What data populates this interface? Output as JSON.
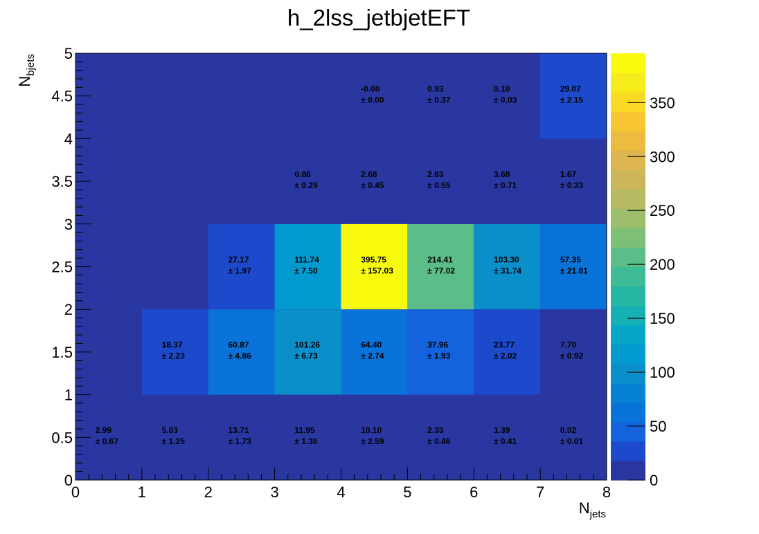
{
  "chart_data": {
    "type": "heatmap",
    "title": "h_2lss_jetbjetEFT",
    "xlabel": {
      "main": "N",
      "sub": "jets"
    },
    "ylabel": {
      "main": "N",
      "sub": "bjets"
    },
    "xlim": [
      0,
      8
    ],
    "ylim": [
      0,
      5
    ],
    "x_ticks": [
      "0",
      "1",
      "2",
      "3",
      "4",
      "5",
      "6",
      "7",
      "8"
    ],
    "y_ticks": [
      "0",
      "0.5",
      "1",
      "1.5",
      "2",
      "2.5",
      "3",
      "3.5",
      "4",
      "4.5",
      "5"
    ],
    "x_bin_edges": [
      0,
      1,
      2,
      3,
      4,
      5,
      6,
      7,
      8
    ],
    "y_bin_edges": [
      0,
      1,
      2,
      3,
      4,
      5
    ],
    "zlim": [
      0,
      395.75
    ],
    "colorbar_ticks": [
      "0",
      "50",
      "100",
      "150",
      "200",
      "250",
      "300",
      "350"
    ],
    "colorbar_tick_values": [
      0,
      50,
      100,
      150,
      200,
      250,
      300,
      350
    ],
    "palette": [
      "#2a37a1",
      "#1d49cc",
      "#1462dc",
      "#0a73d9",
      "#0781d2",
      "#0a8fca",
      "#039bcf",
      "#05a7c6",
      "#14b0b3",
      "#26b7a4",
      "#3ebc95",
      "#5bbd87",
      "#7ebf78",
      "#9cbd6b",
      "#b6ba63",
      "#cbb75a",
      "#ddb651",
      "#edbb3f",
      "#f7c532",
      "#f8d923",
      "#f6ec1b",
      "#f9fb0f"
    ],
    "cells": [
      {
        "x": 0,
        "y": 0,
        "value": 2.99,
        "label": "2.99",
        "error": "± 0.67"
      },
      {
        "x": 1,
        "y": 0,
        "value": 5.83,
        "label": "5.83",
        "error": "± 1.25"
      },
      {
        "x": 2,
        "y": 0,
        "value": 13.71,
        "label": "13.71",
        "error": "± 1.73"
      },
      {
        "x": 3,
        "y": 0,
        "value": 11.95,
        "label": "11.95",
        "error": "± 1.36"
      },
      {
        "x": 4,
        "y": 0,
        "value": 10.1,
        "label": "10.10",
        "error": "± 2.59"
      },
      {
        "x": 5,
        "y": 0,
        "value": 2.33,
        "label": "2.33",
        "error": "± 0.46"
      },
      {
        "x": 6,
        "y": 0,
        "value": 1.39,
        "label": "1.39",
        "error": "± 0.41"
      },
      {
        "x": 7,
        "y": 0,
        "value": 0.02,
        "label": "0.02",
        "error": "± 0.01"
      },
      {
        "x": 1,
        "y": 1,
        "value": 18.37,
        "label": "18.37",
        "error": "± 2.23"
      },
      {
        "x": 2,
        "y": 1,
        "value": 60.87,
        "label": "60.87",
        "error": "± 4.86"
      },
      {
        "x": 3,
        "y": 1,
        "value": 101.26,
        "label": "101.26",
        "error": "± 6.73"
      },
      {
        "x": 4,
        "y": 1,
        "value": 64.4,
        "label": "64.40",
        "error": "± 2.74"
      },
      {
        "x": 5,
        "y": 1,
        "value": 37.96,
        "label": "37.96",
        "error": "± 1.93"
      },
      {
        "x": 6,
        "y": 1,
        "value": 23.77,
        "label": "23.77",
        "error": "± 2.02"
      },
      {
        "x": 7,
        "y": 1,
        "value": 7.7,
        "label": "7.70",
        "error": "± 0.92"
      },
      {
        "x": 2,
        "y": 2,
        "value": 27.17,
        "label": "27.17",
        "error": "± 1.97"
      },
      {
        "x": 3,
        "y": 2,
        "value": 111.74,
        "label": "111.74",
        "error": "± 7.50"
      },
      {
        "x": 4,
        "y": 2,
        "value": 395.75,
        "label": "395.75",
        "error": "± 157.03"
      },
      {
        "x": 5,
        "y": 2,
        "value": 214.41,
        "label": "214.41",
        "error": "± 77.02"
      },
      {
        "x": 6,
        "y": 2,
        "value": 103.3,
        "label": "103.30",
        "error": "± 31.74"
      },
      {
        "x": 7,
        "y": 2,
        "value": 57.35,
        "label": "57.35",
        "error": "± 21.81"
      },
      {
        "x": 3,
        "y": 3,
        "value": 0.86,
        "label": "0.86",
        "error": "± 0.29"
      },
      {
        "x": 4,
        "y": 3,
        "value": 2.68,
        "label": "2.68",
        "error": "± 0.45"
      },
      {
        "x": 5,
        "y": 3,
        "value": 2.83,
        "label": "2.83",
        "error": "± 0.55"
      },
      {
        "x": 6,
        "y": 3,
        "value": 3.68,
        "label": "3.68",
        "error": "± 0.71"
      },
      {
        "x": 7,
        "y": 3,
        "value": 1.67,
        "label": "1.67",
        "error": "± 0.33"
      },
      {
        "x": 4,
        "y": 4,
        "value": -0.0,
        "label": "-0.00",
        "error": "± 0.00"
      },
      {
        "x": 5,
        "y": 4,
        "value": 0.93,
        "label": "0.93",
        "error": "± 0.37"
      },
      {
        "x": 6,
        "y": 4,
        "value": 0.1,
        "label": "0.10",
        "error": "± 0.03"
      },
      {
        "x": 7,
        "y": 4,
        "value": 29.07,
        "label": "29.07",
        "error": "± 2.15"
      }
    ]
  }
}
